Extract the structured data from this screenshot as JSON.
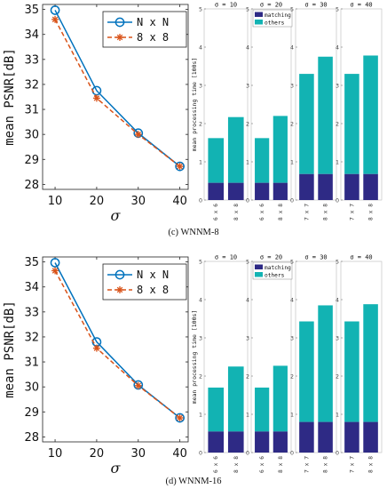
{
  "colors": {
    "nxn": "#0072BD",
    "n8": "#D95319",
    "matching": "#2E2A85",
    "others": "#12B3B3",
    "axis": "#222222"
  },
  "figures": [
    {
      "caption": "(c) WNNM-8",
      "line": {
        "ylabel": "mean PSNR[dB]",
        "xlabel": "σ",
        "x": [
          10,
          20,
          30,
          40
        ],
        "xticks": [
          "10",
          "20",
          "30",
          "40"
        ],
        "ylim": [
          27.8,
          35.2
        ],
        "yticks": [
          "28",
          "29",
          "30",
          "31",
          "32",
          "33",
          "34",
          "35"
        ],
        "series": [
          {
            "name": "N x N",
            "y": [
              34.97,
              31.75,
              30.05,
              28.72
            ]
          },
          {
            "name": "8 x 8",
            "y": [
              34.6,
              31.45,
              30.0,
              28.72
            ]
          }
        ]
      },
      "bars": {
        "ylabel": "mean processing time [100s]",
        "legend": [
          "matching",
          "others"
        ],
        "ylim": [
          0,
          5
        ],
        "yticks": [
          "0",
          "1",
          "2",
          "3",
          "4",
          "5"
        ],
        "panels": [
          {
            "title": "σ = 10",
            "categories": [
              "6 x 6",
              "8 x 8"
            ],
            "matching": [
              0.45,
              0.45
            ],
            "total": [
              1.62,
              2.17
            ]
          },
          {
            "title": "σ = 20",
            "categories": [
              "6 x 6",
              "8 x 8"
            ],
            "matching": [
              0.45,
              0.45
            ],
            "total": [
              1.62,
              2.2
            ]
          },
          {
            "title": "σ = 30",
            "categories": [
              "7 x 7",
              "8 x 8"
            ],
            "matching": [
              0.68,
              0.68
            ],
            "total": [
              3.3,
              3.75
            ]
          },
          {
            "title": "σ = 40",
            "categories": [
              "7 x 7",
              "8 x 8"
            ],
            "matching": [
              0.68,
              0.68
            ],
            "total": [
              3.3,
              3.78
            ]
          }
        ]
      }
    },
    {
      "caption": "(d) WNNM-16",
      "line": {
        "ylabel": "mean PSNR[dB]",
        "xlabel": "σ",
        "x": [
          10,
          20,
          30,
          40
        ],
        "xticks": [
          "10",
          "20",
          "30",
          "40"
        ],
        "ylim": [
          27.8,
          35.2
        ],
        "yticks": [
          "28",
          "29",
          "30",
          "31",
          "32",
          "33",
          "34",
          "35"
        ],
        "series": [
          {
            "name": "N x N",
            "y": [
              34.97,
              31.8,
              30.08,
              28.76
            ]
          },
          {
            "name": "8 x 8",
            "y": [
              34.65,
              31.55,
              30.05,
              28.76
            ]
          }
        ]
      },
      "bars": {
        "ylabel": "mean processing time [100s]",
        "legend": [
          "matching",
          "others"
        ],
        "ylim": [
          0,
          5
        ],
        "yticks": [
          "0",
          "1",
          "2",
          "3",
          "4",
          "5"
        ],
        "panels": [
          {
            "title": "σ = 10",
            "categories": [
              "6 x 6",
              "8 x 8"
            ],
            "matching": [
              0.55,
              0.55
            ],
            "total": [
              1.7,
              2.25
            ]
          },
          {
            "title": "σ = 20",
            "categories": [
              "6 x 6",
              "8 x 8"
            ],
            "matching": [
              0.55,
              0.55
            ],
            "total": [
              1.7,
              2.27
            ]
          },
          {
            "title": "σ = 30",
            "categories": [
              "7 x 7",
              "8 x 8"
            ],
            "matching": [
              0.8,
              0.8
            ],
            "total": [
              3.43,
              3.85
            ]
          },
          {
            "title": "σ = 40",
            "categories": [
              "7 x 7",
              "8 x 8"
            ],
            "matching": [
              0.8,
              0.8
            ],
            "total": [
              3.43,
              3.88
            ]
          }
        ]
      }
    }
  ],
  "chart_data": [
    {
      "type": "line",
      "ylabel": "mean PSNR[dB]",
      "xlabel": "σ",
      "x": [
        10,
        20,
        30,
        40
      ],
      "ylim": [
        27.8,
        35.2
      ],
      "series": [
        {
          "name": "N x N",
          "values": [
            34.97,
            31.75,
            30.05,
            28.72
          ]
        },
        {
          "name": "8 x 8",
          "values": [
            34.6,
            31.45,
            30.0,
            28.72
          ]
        }
      ],
      "legend": "top-right"
    },
    {
      "type": "bar",
      "stacked": true,
      "ylabel": "mean processing time [100s]",
      "ylim": [
        0,
        5
      ],
      "panel_titles": [
        "σ = 10",
        "σ = 20",
        "σ = 30",
        "σ = 40"
      ],
      "categories": [
        "6 x 6",
        "8 x 8",
        "6 x 6",
        "8 x 8",
        "7 x 7",
        "8 x 8",
        "7 x 7",
        "8 x 8"
      ],
      "series": [
        {
          "name": "matching",
          "values": [
            0.45,
            0.45,
            0.45,
            0.45,
            0.68,
            0.68,
            0.68,
            0.68
          ]
        },
        {
          "name": "others",
          "values": [
            1.17,
            1.72,
            1.17,
            1.75,
            2.62,
            3.07,
            2.62,
            3.1
          ]
        }
      ]
    },
    {
      "type": "line",
      "ylabel": "mean PSNR[dB]",
      "xlabel": "σ",
      "x": [
        10,
        20,
        30,
        40
      ],
      "ylim": [
        27.8,
        35.2
      ],
      "series": [
        {
          "name": "N x N",
          "values": [
            34.97,
            31.8,
            30.08,
            28.76
          ]
        },
        {
          "name": "8 x 8",
          "values": [
            34.65,
            31.55,
            30.05,
            28.76
          ]
        }
      ],
      "legend": "top-right"
    },
    {
      "type": "bar",
      "stacked": true,
      "ylabel": "mean processing time [100s]",
      "ylim": [
        0,
        5
      ],
      "panel_titles": [
        "σ = 10",
        "σ = 20",
        "σ = 30",
        "σ = 40"
      ],
      "categories": [
        "6 x 6",
        "8 x 8",
        "6 x 6",
        "8 x 8",
        "7 x 7",
        "8 x 8",
        "7 x 7",
        "8 x 8"
      ],
      "series": [
        {
          "name": "matching",
          "values": [
            0.55,
            0.55,
            0.55,
            0.55,
            0.8,
            0.8,
            0.8,
            0.8
          ]
        },
        {
          "name": "others",
          "values": [
            1.15,
            1.7,
            1.15,
            1.72,
            2.63,
            3.05,
            2.63,
            3.08
          ]
        }
      ]
    }
  ]
}
